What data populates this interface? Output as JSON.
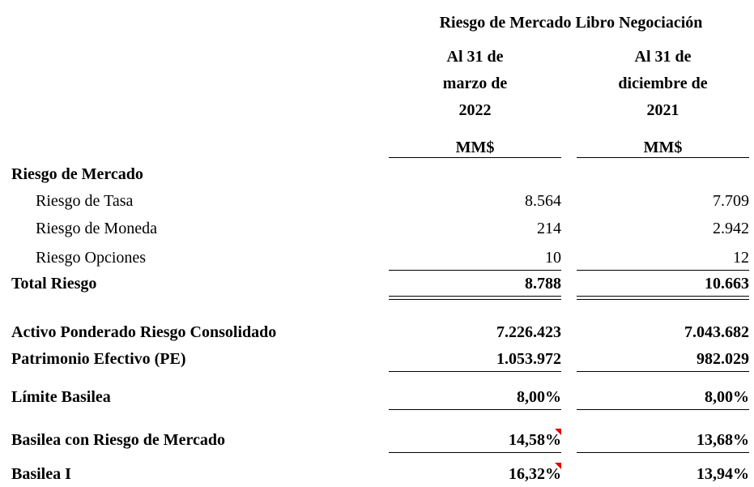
{
  "header": {
    "title": "Riesgo de Mercado Libro Negociación",
    "columns": [
      {
        "lines": [
          "Al 31 de",
          "marzo de",
          "2022"
        ],
        "unit": "MM$"
      },
      {
        "lines": [
          "Al 31 de",
          "diciembre de",
          "2021"
        ],
        "unit": "MM$"
      }
    ]
  },
  "table": {
    "rows": [
      {
        "label": "Riesgo de Mercado",
        "values": []
      },
      {
        "label": "Riesgo de Tasa",
        "values": [
          "8.564",
          "7.709"
        ]
      },
      {
        "label": "Riesgo de Moneda",
        "values": [
          "214",
          "2.942"
        ]
      },
      {
        "label": "Riesgo Opciones",
        "values": [
          "10",
          "12"
        ]
      },
      {
        "label": "Total Riesgo",
        "values": [
          "8.788",
          "10.663"
        ]
      },
      {
        "label": "Activo Ponderado Riesgo Consolidado",
        "values": [
          "7.226.423",
          "7.043.682"
        ]
      },
      {
        "label": "Patrimonio Efectivo (PE)",
        "values": [
          "1.053.972",
          "982.029"
        ]
      },
      {
        "label": "Límite Basilea",
        "values": [
          "8,00%",
          "8,00%"
        ]
      },
      {
        "label": "Basilea con Riesgo de Mercado",
        "values": [
          "14,58%",
          "13,68%"
        ]
      },
      {
        "label": "Basilea I",
        "values": [
          "16,32%",
          "13,94%"
        ]
      }
    ]
  }
}
